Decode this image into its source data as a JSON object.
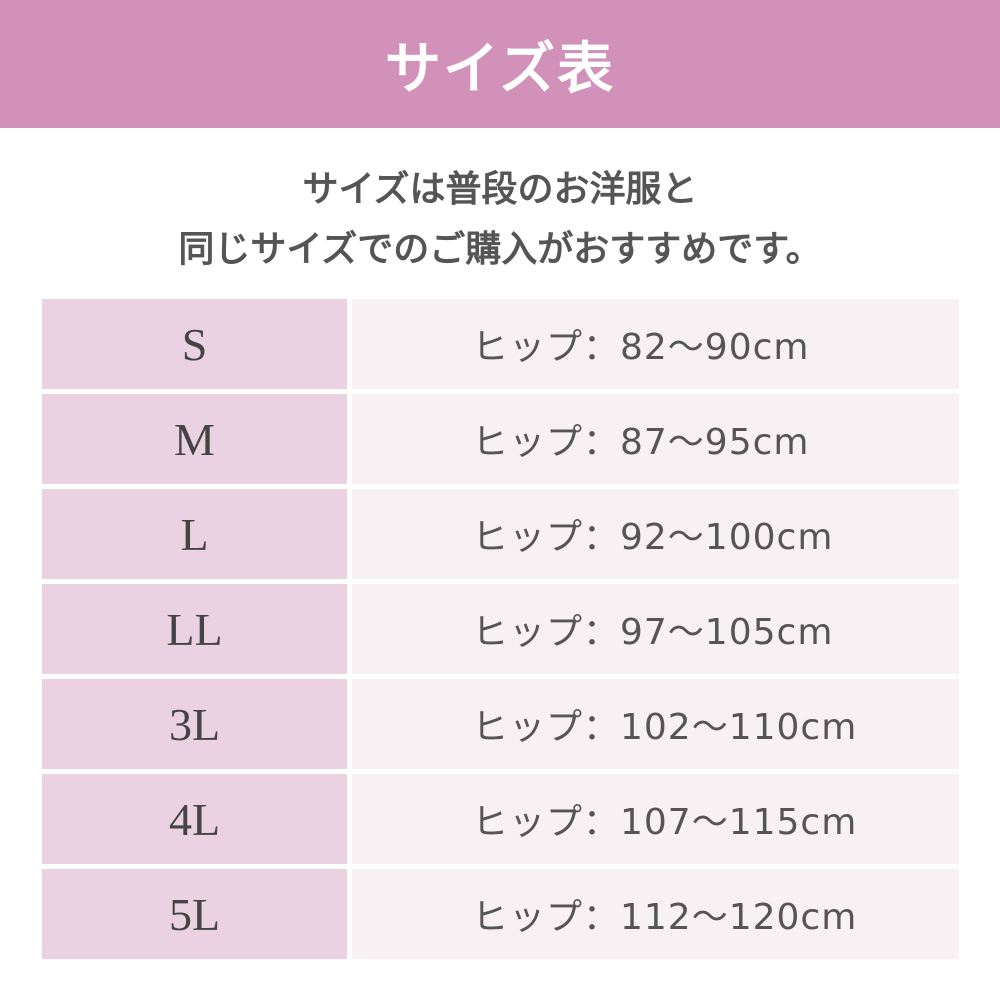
{
  "header": {
    "title": "サイズ表"
  },
  "intro": {
    "line1": "サイズは普段のお洋服と",
    "line2": "同じサイズでのご購入がおすすめです。"
  },
  "colors": {
    "header": "#d291b9",
    "size_cell": "#ebd2e3",
    "desc_cell": "#f8f1f4"
  },
  "rows": [
    {
      "size": "S",
      "desc": "ヒップ：82〜90cm"
    },
    {
      "size": "M",
      "desc": "ヒップ：87〜95cm"
    },
    {
      "size": "L",
      "desc": "ヒップ：92〜100cm"
    },
    {
      "size": "LL",
      "desc": "ヒップ：97〜105cm"
    },
    {
      "size": "3L",
      "desc": "ヒップ：102〜110cm"
    },
    {
      "size": "4L",
      "desc": "ヒップ：107〜115cm"
    },
    {
      "size": "5L",
      "desc": "ヒップ：112〜120cm"
    }
  ]
}
